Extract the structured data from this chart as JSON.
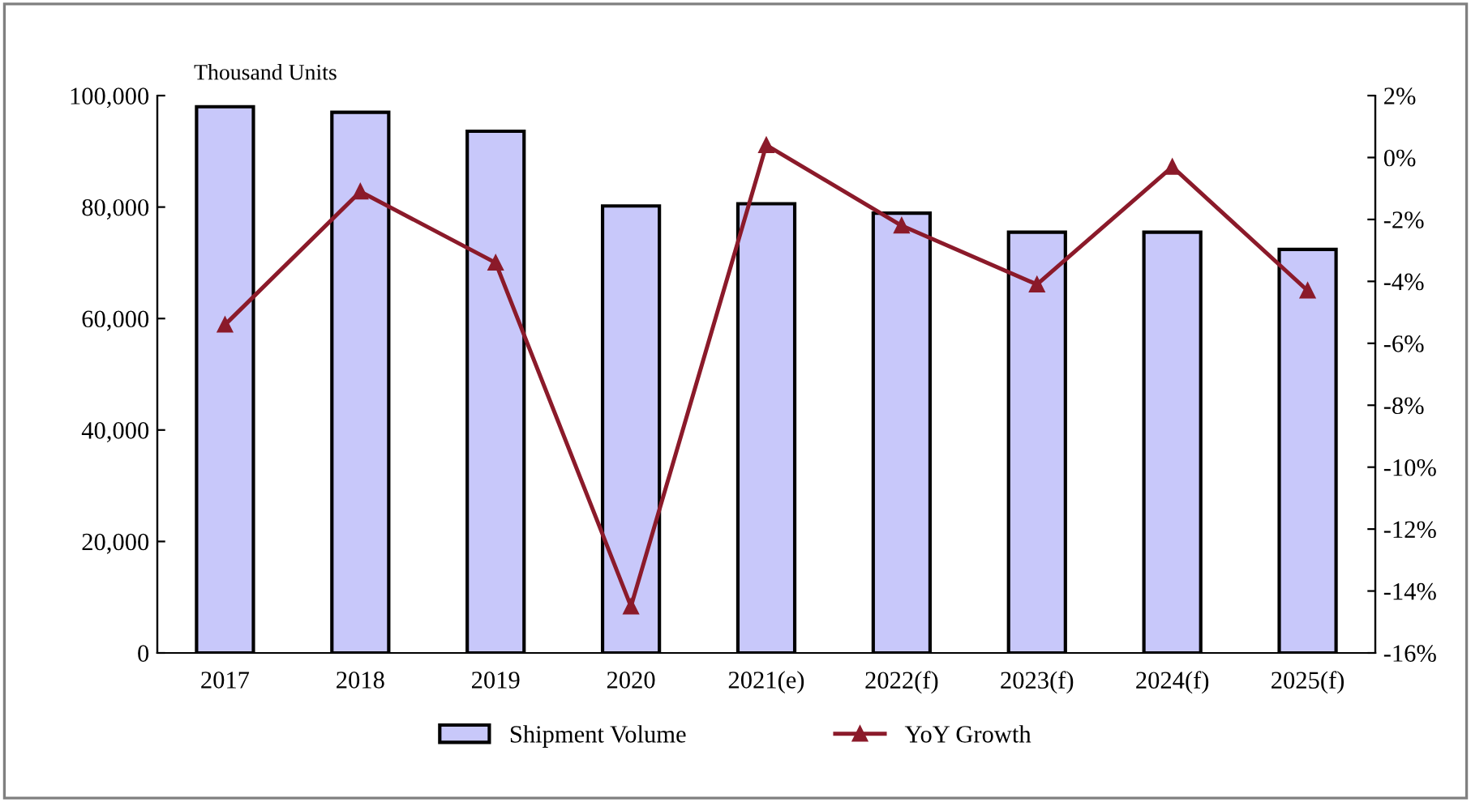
{
  "chart_data": {
    "type": "bar",
    "ylabel": "Thousand Units",
    "categories": [
      "2017",
      "2018",
      "2019",
      "2020",
      "2021(e)",
      "2022(f)",
      "2023(f)",
      "2024(f)",
      "2025(f)"
    ],
    "series": [
      {
        "name": "Shipment Volume",
        "color": "#c8c8fa",
        "values": [
          98000,
          97000,
          93600,
          80200,
          80600,
          78900,
          75500,
          75500,
          72400
        ]
      },
      {
        "name": "YoY Growth",
        "type": "line",
        "axis": "y2",
        "color": "#8b1a2a",
        "marker": "triangle",
        "values": [
          -5.4,
          -1.1,
          -3.4,
          -14.5,
          0.4,
          -2.2,
          -4.1,
          -0.3,
          -4.3
        ]
      }
    ],
    "ylim": [
      0,
      100000
    ],
    "yticks": [
      0,
      {
        "value": 20000,
        "label": "20,000"
      },
      {
        "value": 40000,
        "label": "40,000"
      },
      {
        "value": 60000,
        "label": "60,000"
      },
      {
        "value": 80000,
        "label": "80,000"
      },
      {
        "value": 100000,
        "label": "100,000"
      }
    ],
    "y2lim": [
      -16,
      2
    ],
    "y2ticks": [
      {
        "value": -16,
        "label": "-16%"
      },
      {
        "value": -14,
        "label": "-14%"
      },
      {
        "value": -12,
        "label": "-12%"
      },
      {
        "value": -10,
        "label": "-10%"
      },
      {
        "value": -8,
        "label": "-8%"
      },
      {
        "value": -6,
        "label": "-6%"
      },
      {
        "value": -4,
        "label": "-4%"
      },
      {
        "value": -2,
        "label": "-2%"
      },
      {
        "value": 0,
        "label": "0%"
      },
      {
        "value": 2,
        "label": "2%"
      }
    ],
    "grid": false,
    "legend": "bottom"
  }
}
